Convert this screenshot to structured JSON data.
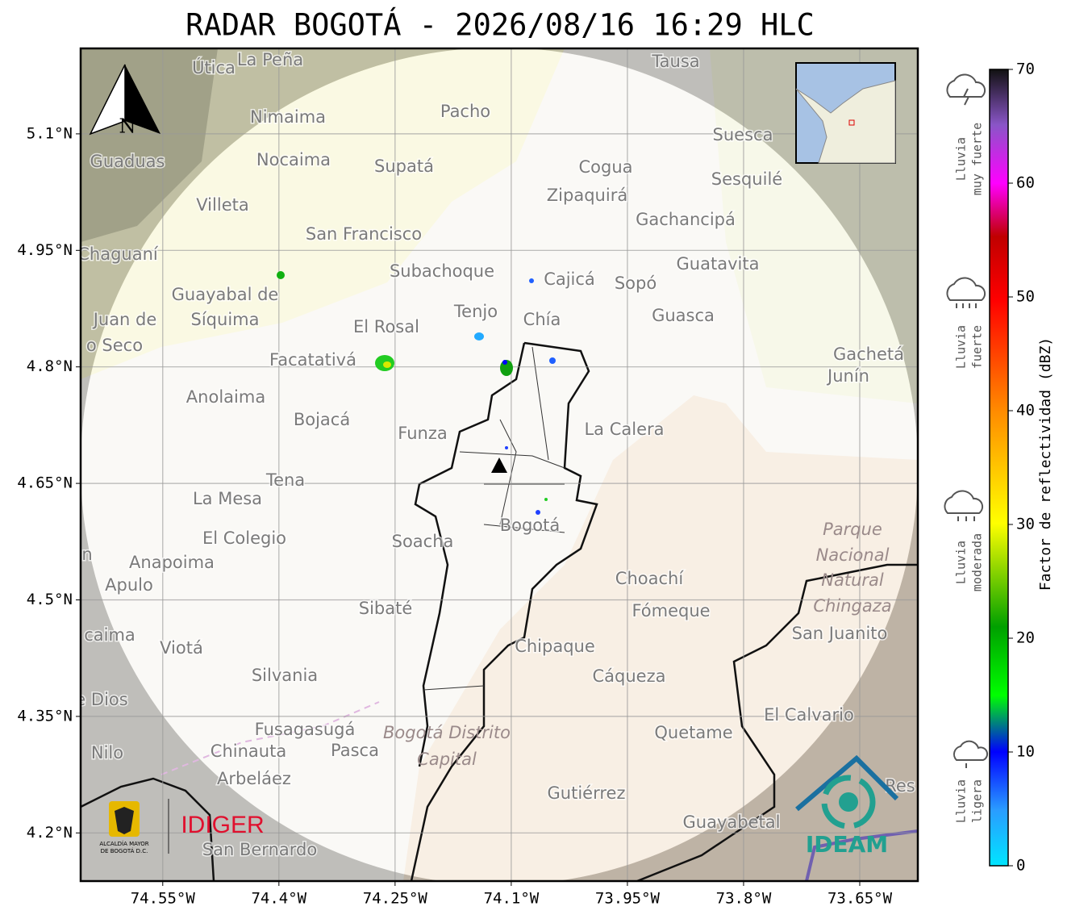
{
  "title": "RADAR BOGOTÁ - 2026/08/16 16:29 HLC",
  "map": {
    "xlim": [
      -74.656,
      -73.575
    ],
    "ylim": [
      4.138,
      5.21
    ],
    "xticks": [
      {
        "value": -74.55,
        "label": "74.55°W"
      },
      {
        "value": -74.4,
        "label": "74.4°W"
      },
      {
        "value": -74.25,
        "label": "74.25°W"
      },
      {
        "value": -74.1,
        "label": "74.1°W"
      },
      {
        "value": -73.95,
        "label": "73.95°W"
      },
      {
        "value": -73.8,
        "label": "73.8°W"
      },
      {
        "value": -73.65,
        "label": "73.65°W"
      }
    ],
    "yticks": [
      {
        "value": 5.1,
        "label": "5.1°N"
      },
      {
        "value": 4.95,
        "label": "4.95°N"
      },
      {
        "value": 4.8,
        "label": "4.8°N"
      },
      {
        "value": 4.65,
        "label": "4.65°N"
      },
      {
        "value": 4.5,
        "label": "4.5°N"
      },
      {
        "value": 4.35,
        "label": "4.35°N"
      },
      {
        "value": 4.2,
        "label": "4.2°N"
      }
    ],
    "grid": true,
    "north": "N",
    "places": [
      "Útica",
      "La Peña",
      "Tausa",
      "Pacho",
      "Nimaima",
      "Suesca",
      "Guaduas",
      "Nocaima",
      "Supatá",
      "Cogua",
      "Sesquilé",
      "Zipaquirá",
      "Villeta",
      "Gachancipá",
      "San Francisco",
      "Chaguaní",
      "Guatavita",
      "Subachoque",
      "Cajicá",
      "Sopó",
      "Guayabal de",
      "Síquima",
      "Tenjo",
      "Juan de",
      "Guasca",
      "Chía",
      "El Rosal",
      "o Seco",
      "Gachetá",
      "Junín",
      "Facatativá",
      "Anolaima",
      "Bojacá",
      "La Calera",
      "Funza",
      "Tena",
      "La Mesa",
      "Bogotá",
      "El Colegio",
      "Soacha",
      "n",
      "Anapoima",
      "Apulo",
      "Choachí",
      "Sibaté",
      "Fómeque",
      "San Juanito",
      "caima",
      "Viotá",
      "Chipaque",
      "Silvania",
      "Cáqueza",
      "e Dios",
      "El Calvario",
      "Fusagasugá",
      "Quetame",
      "Nilo",
      "Chinauta",
      "Pasca",
      "Arbeláez",
      "Res",
      "Gutiérrez",
      "Guayabetal",
      "San Bernardo"
    ],
    "areas": [
      "Parque",
      "Nacional",
      "Natural",
      "Chingaza",
      "Bogotá Distrito",
      "Capital"
    ],
    "logos": {
      "alcaldia": "ALCALDÍA MAYOR",
      "alcaldia2": "DE BOGOTÁ D.C.",
      "idiger": "IDIGER",
      "ideam": "IDEAM"
    }
  },
  "colorbar": {
    "label": "Factor de reflectividad (dBZ)",
    "lim": [
      0,
      70
    ],
    "ticks": [
      0,
      10,
      20,
      30,
      40,
      50,
      60,
      70
    ]
  },
  "rain_levels": [
    [
      "Lluvia",
      "muy fuerte"
    ],
    [
      "Lluvia",
      "fuerte"
    ],
    [
      "Lluvia",
      "moderada"
    ],
    [
      "Lluvia",
      "ligera"
    ]
  ]
}
